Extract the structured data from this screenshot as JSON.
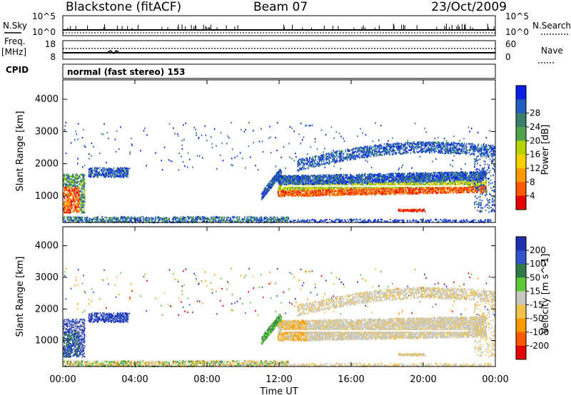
{
  "header": {
    "station": "Blackstone (fitACF)",
    "beam": "Beam 07",
    "date": "23/Oct/2009"
  },
  "panels": {
    "nsky_label": "N.Sky",
    "nsky_ticks": [
      "10^5",
      "10^0"
    ],
    "nsearch_label": "N.Search",
    "nsearch_ticks": [
      "10^5",
      "10^0"
    ],
    "freq_label": "Freq.",
    "freq_unit": "[MHz]",
    "freq_ticks": [
      "18",
      "8"
    ],
    "nave_label": "Nave",
    "nave_ticks": [
      "60",
      "0"
    ],
    "cpid_label": "CPID",
    "cpid_text": "normal (fast stereo) 153"
  },
  "chart_data": [
    {
      "type": "heatmap",
      "name": "power",
      "ylabel": "Slant Range [km]",
      "xlabel": "",
      "ylim": [
        180,
        4600
      ],
      "yticks": [
        1000,
        2000,
        3000,
        4000
      ],
      "xticks": [
        "00:00",
        "04:00",
        "08:00",
        "12:00",
        "16:00",
        "20:00",
        "00:00"
      ],
      "xlim_hours": [
        0,
        24
      ],
      "colorbar": {
        "label": "Power [dB]",
        "ticks": [
          "4",
          "8",
          "12",
          "16",
          "20",
          "24",
          "28"
        ],
        "colors": [
          "#0a1ee6",
          "#1f5fbf",
          "#3a7d6a",
          "#4fa34a",
          "#b6d400",
          "#f6d100",
          "#ff9a00",
          "#ff5a00",
          "#e60000"
        ]
      }
    },
    {
      "type": "heatmap",
      "name": "velocity",
      "ylabel": "Slant Range [km]",
      "xlabel": "Time UT",
      "ylim": [
        180,
        4600
      ],
      "yticks": [
        1000,
        2000,
        3000,
        4000
      ],
      "xticks": [
        "00:00",
        "04:00",
        "08:00",
        "12:00",
        "16:00",
        "20:00",
        "00:00"
      ],
      "xlim_hours": [
        0,
        24
      ],
      "colorbar": {
        "label": "Velocity [m s^-1]",
        "ticks": [
          "200",
          "100",
          "50",
          "15",
          "-15",
          "-50",
          "-100",
          "-200"
        ],
        "colors": [
          "#1f2fb0",
          "#2f55c8",
          "#2f7a4a",
          "#5ec83a",
          "#c8c8c0",
          "#f0c24a",
          "#ff9a00",
          "#ff5a00",
          "#e60000"
        ]
      }
    }
  ],
  "colors": {
    "line": "#000000",
    "ground_scatter": "#c8c8c0"
  }
}
